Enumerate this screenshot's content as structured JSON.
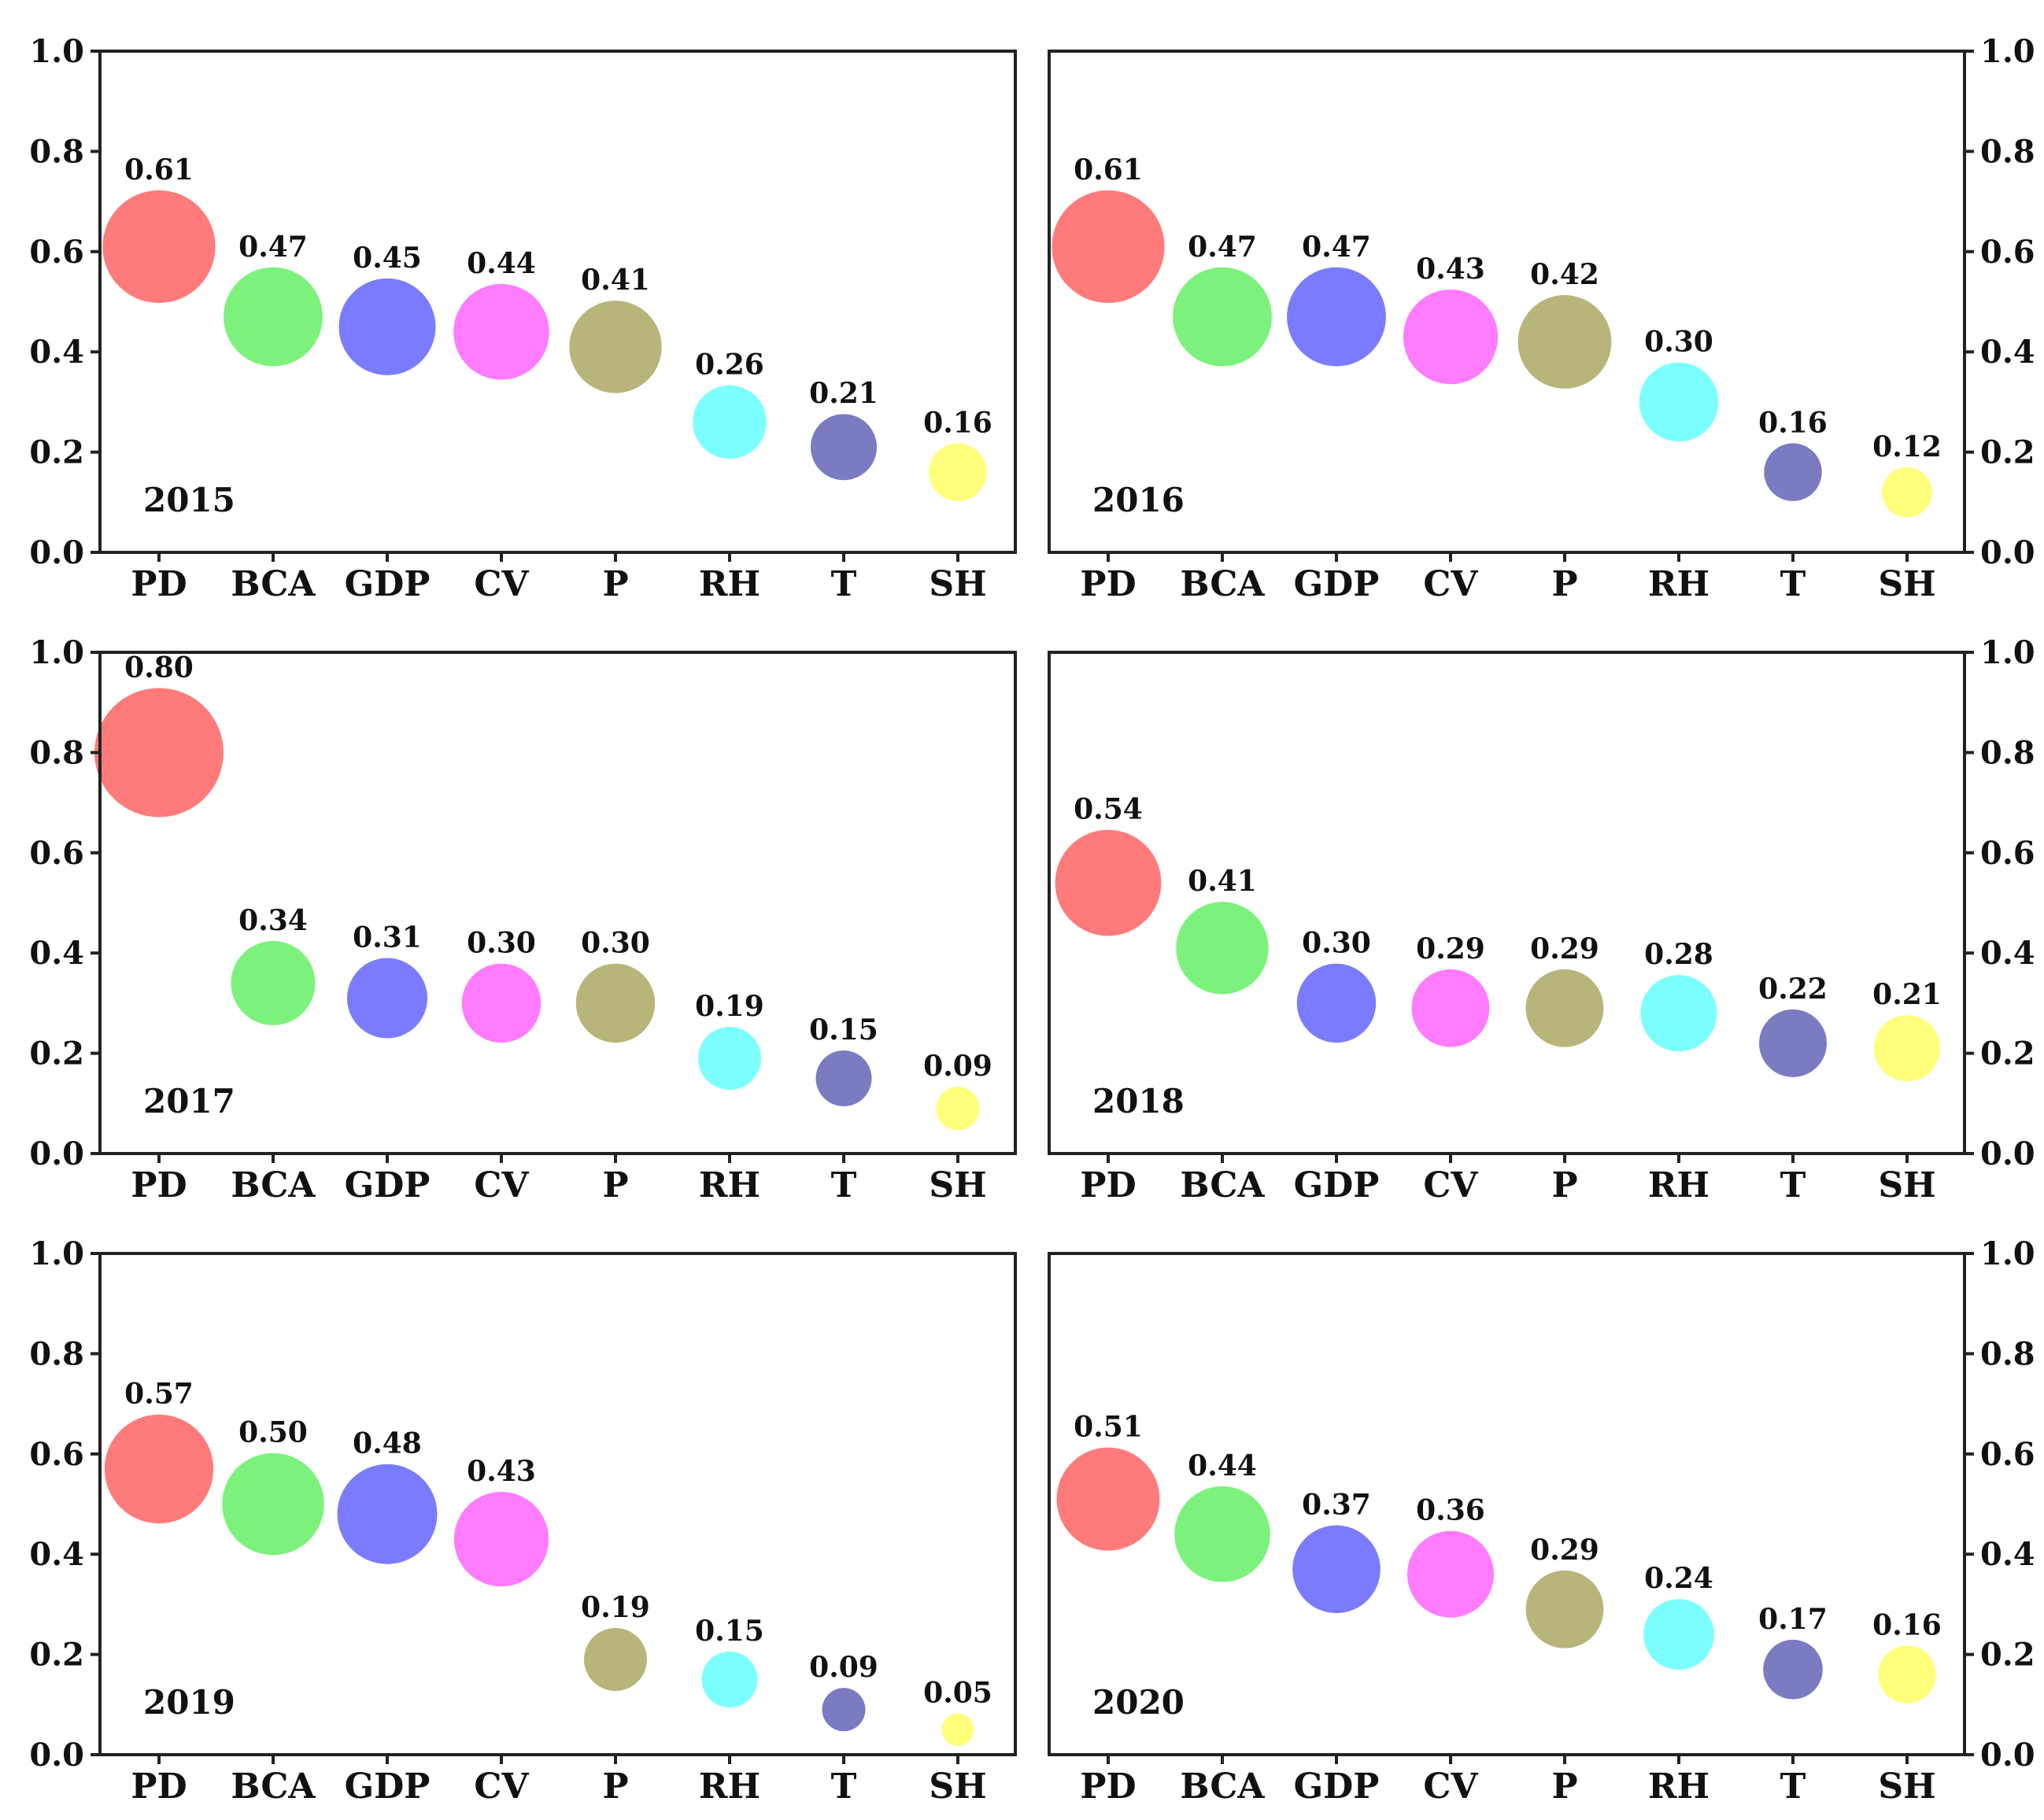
{
  "chart_data": {
    "type": "scatter",
    "layout": "3x2 small multiples (bubble charts)",
    "categories": [
      "PD",
      "BCA",
      "GDP",
      "CV",
      "P",
      "RH",
      "T",
      "SH"
    ],
    "colors": [
      "#ff7b7b",
      "#7cf27c",
      "#7b7bff",
      "#ff7bff",
      "#b8b57a",
      "#7bffff",
      "#7b7bc2",
      "#ffff7b"
    ],
    "ylim": [
      0,
      1.0
    ],
    "yticks": [
      "0.0",
      "0.2",
      "0.4",
      "0.6",
      "0.8",
      "1.0"
    ],
    "bubble_size": "proportional to value",
    "panels": [
      {
        "year": "2015",
        "y_axis": "left",
        "values": [
          0.61,
          0.47,
          0.45,
          0.44,
          0.41,
          0.26,
          0.21,
          0.16
        ],
        "labels": [
          "0.61",
          "0.47",
          "0.45",
          "0.44",
          "0.41",
          "0.26",
          "0.21",
          "0.16"
        ]
      },
      {
        "year": "2016",
        "y_axis": "right",
        "values": [
          0.61,
          0.47,
          0.47,
          0.43,
          0.42,
          0.3,
          0.16,
          0.12
        ],
        "labels": [
          "0.61",
          "0.47",
          "0.47",
          "0.43",
          "0.42",
          "0.30",
          "0.16",
          "0.12"
        ]
      },
      {
        "year": "2017",
        "y_axis": "left",
        "values": [
          0.8,
          0.34,
          0.31,
          0.3,
          0.3,
          0.19,
          0.15,
          0.09
        ],
        "labels": [
          "0.80",
          "0.34",
          "0.31",
          "0.30",
          "0.30",
          "0.19",
          "0.15",
          "0.09"
        ]
      },
      {
        "year": "2018",
        "y_axis": "right",
        "values": [
          0.54,
          0.41,
          0.3,
          0.29,
          0.29,
          0.28,
          0.22,
          0.21
        ],
        "labels": [
          "0.54",
          "0.41",
          "0.30",
          "0.29",
          "0.29",
          "0.28",
          "0.22",
          "0.21"
        ]
      },
      {
        "year": "2019",
        "y_axis": "left",
        "values": [
          0.57,
          0.5,
          0.48,
          0.43,
          0.19,
          0.15,
          0.09,
          0.05
        ],
        "labels": [
          "0.57",
          "0.50",
          "0.48",
          "0.43",
          "0.19",
          "0.15",
          "0.09",
          "0.05"
        ]
      },
      {
        "year": "2020",
        "y_axis": "right",
        "values": [
          0.51,
          0.44,
          0.37,
          0.36,
          0.29,
          0.24,
          0.17,
          0.16
        ],
        "labels": [
          "0.51",
          "0.44",
          "0.37",
          "0.36",
          "0.29",
          "0.24",
          "0.17",
          "0.16"
        ]
      }
    ]
  }
}
